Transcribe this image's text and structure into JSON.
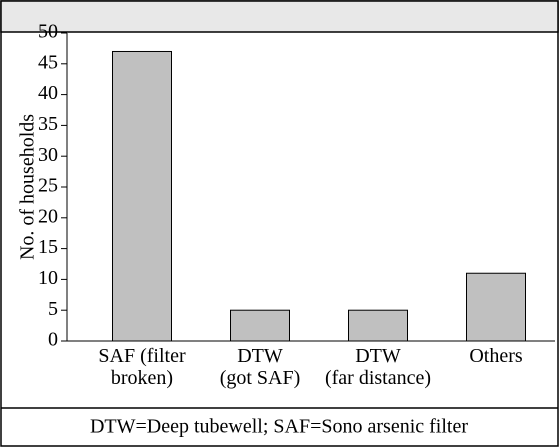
{
  "chart_data": {
    "type": "bar",
    "y_label": "No. of households",
    "categories": [
      [
        "SAF (filter",
        "broken)"
      ],
      [
        "DTW",
        "(got SAF)"
      ],
      [
        "DTW",
        "(far distance)"
      ],
      [
        "Others"
      ]
    ],
    "values": [
      47,
      5,
      5,
      11
    ],
    "color": "#c0c0c0",
    "ylim": [
      0,
      50
    ],
    "yticks": [
      0,
      5,
      10,
      15,
      20,
      25,
      30,
      35,
      40,
      45,
      50
    ],
    "footnote": "DTW=Deep tubewell; SAF=Sono arsenic filter"
  }
}
